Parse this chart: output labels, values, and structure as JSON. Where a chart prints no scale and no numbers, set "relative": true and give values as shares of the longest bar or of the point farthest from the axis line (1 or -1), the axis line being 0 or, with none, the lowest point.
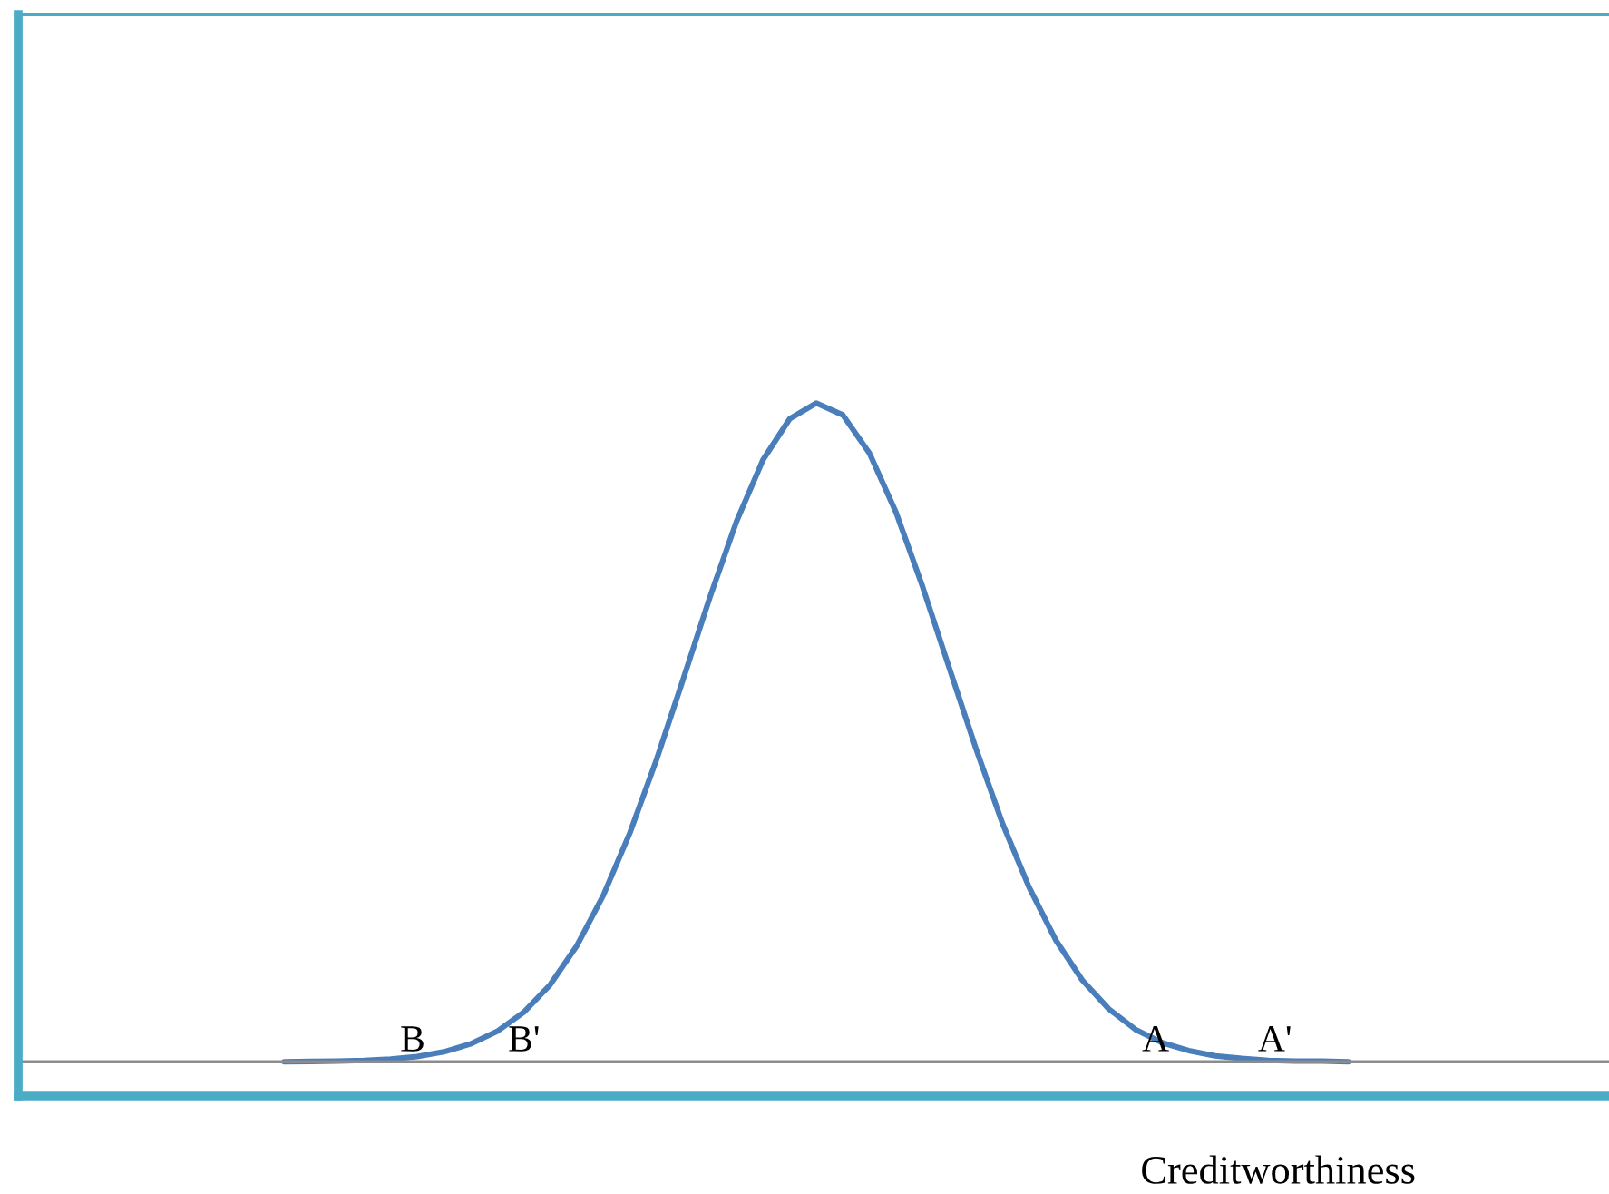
{
  "chart_data": {
    "type": "line",
    "relative": true,
    "xlabel": "Creditworthiness",
    "categories": [
      null,
      null,
      null,
      null,
      null,
      null,
      null,
      null,
      null,
      null,
      null,
      null,
      null,
      null,
      null,
      null,
      null,
      null,
      null,
      null,
      null,
      null,
      null,
      null,
      null,
      null,
      null,
      null,
      null,
      null,
      null,
      null,
      null,
      null,
      null,
      null,
      null,
      null,
      null,
      null,
      null
    ],
    "series": [
      {
        "color": "#4a7ebb",
        "values": [
          0.0,
          0.0005,
          0.001,
          0.002,
          0.004,
          0.008,
          0.015,
          0.027,
          0.046,
          0.075,
          0.117,
          0.176,
          0.253,
          0.348,
          0.459,
          0.581,
          0.705,
          0.82,
          0.914,
          0.976,
          1.0,
          0.982,
          0.924,
          0.834,
          0.721,
          0.598,
          0.476,
          0.362,
          0.265,
          0.185,
          0.124,
          0.08,
          0.049,
          0.029,
          0.017,
          0.009,
          0.005,
          0.002,
          0.001,
          0.001,
          0.0
        ]
      }
    ],
    "annotations": [
      "B",
      "B'",
      "A",
      "A'"
    ]
  }
}
